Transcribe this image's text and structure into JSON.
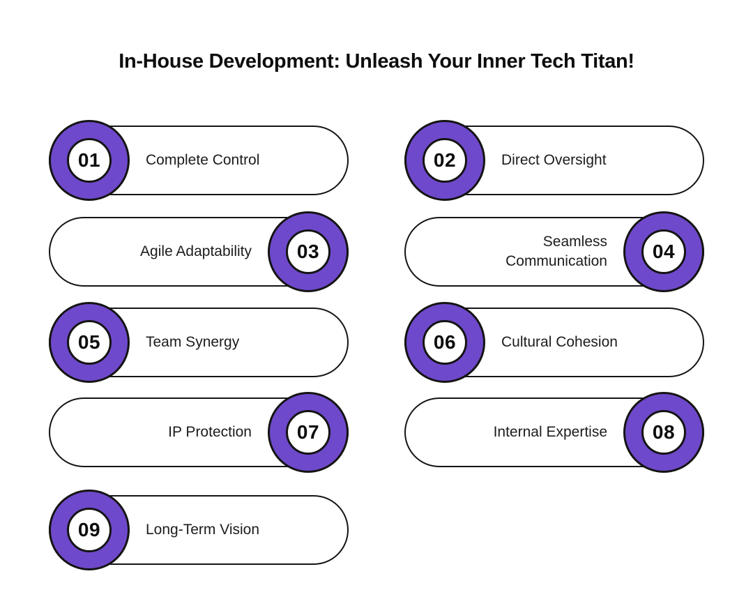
{
  "title": "In-House Development: Unleash Your Inner Tech Titan!",
  "colors": {
    "accent_purple": "#6f49cb",
    "outline": "#141414",
    "background": "#ffffff",
    "text": "#1c1c1c"
  },
  "items": [
    {
      "number": "01",
      "label": "Complete Control"
    },
    {
      "number": "02",
      "label": "Direct Oversight"
    },
    {
      "number": "03",
      "label": "Agile Adaptability"
    },
    {
      "number": "04",
      "label": "Seamless Communication"
    },
    {
      "number": "05",
      "label": "Team Synergy"
    },
    {
      "number": "06",
      "label": "Cultural Cohesion"
    },
    {
      "number": "07",
      "label": "IP Protection"
    },
    {
      "number": "08",
      "label": "Internal Expertise"
    },
    {
      "number": "09",
      "label": "Long-Term Vision"
    }
  ]
}
